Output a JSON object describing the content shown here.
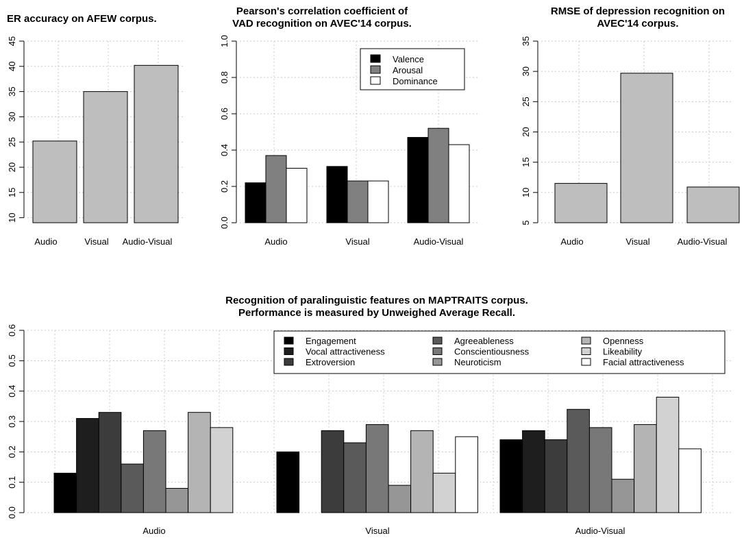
{
  "chart_data": [
    {
      "type": "bar",
      "title_lines": [
        "ER accuracy on AFEW corpus."
      ],
      "categories": [
        "Audio",
        "Visual",
        "Audio-Visual"
      ],
      "values": [
        25.2,
        35.0,
        40.2
      ],
      "ylim": [
        9,
        45
      ],
      "yticks": [
        10,
        15,
        20,
        25,
        30,
        35,
        40,
        45
      ],
      "grid": true,
      "colors": [
        "#bebebe"
      ]
    },
    {
      "type": "bar",
      "title_lines": [
        "Pearson's correlation coefficient of",
        "VAD recognition on AVEC'14 corpus."
      ],
      "categories": [
        "Audio",
        "Visual",
        "Audio-Visual"
      ],
      "series": [
        {
          "name": "Valence",
          "values": [
            0.22,
            0.31,
            0.47
          ]
        },
        {
          "name": "Arousal",
          "values": [
            0.37,
            0.23,
            0.52
          ]
        },
        {
          "name": "Dominance",
          "values": [
            0.3,
            0.23,
            0.43
          ]
        }
      ],
      "ylim": [
        0,
        1.0
      ],
      "yticks": [
        0.0,
        0.2,
        0.4,
        0.6,
        0.8,
        1.0
      ],
      "tick_decimals": 1,
      "legend": "top-right",
      "grid": true,
      "colors": [
        "#000000",
        "#808080",
        "#ffffff"
      ]
    },
    {
      "type": "bar",
      "title_lines": [
        "RMSE of depression recognition on",
        "AVEC'14 corpus."
      ],
      "categories": [
        "Audio",
        "Visual",
        "Audio-Visual"
      ],
      "values": [
        11.5,
        29.7,
        10.9
      ],
      "ylim": [
        5,
        35
      ],
      "yticks": [
        5,
        10,
        15,
        20,
        25,
        30,
        35
      ],
      "grid": true,
      "colors": [
        "#bebebe"
      ]
    },
    {
      "type": "bar",
      "title_lines": [
        "Recognition of paralinguistic features on MAPTRAITS corpus.",
        "Performance is measured by Unweighed Average Recall."
      ],
      "categories": [
        "Audio",
        "Visual",
        "Audio-Visual"
      ],
      "series": [
        {
          "name": "Engagement",
          "values": [
            0.13,
            0.2,
            0.24
          ]
        },
        {
          "name": "Vocal attractiveness",
          "values": [
            0.31,
            0.0,
            0.27
          ]
        },
        {
          "name": "Extroversion",
          "values": [
            0.33,
            0.27,
            0.24
          ]
        },
        {
          "name": "Agreeableness",
          "values": [
            0.16,
            0.23,
            0.34
          ]
        },
        {
          "name": "Conscientiousness",
          "values": [
            0.27,
            0.29,
            0.28
          ]
        },
        {
          "name": "Neuroticism",
          "values": [
            0.08,
            0.09,
            0.11
          ]
        },
        {
          "name": "Openness",
          "values": [
            0.33,
            0.27,
            0.29
          ]
        },
        {
          "name": "Likeability",
          "values": [
            0.28,
            0.13,
            0.38
          ]
        },
        {
          "name": "Facial attractiveness",
          "values": [
            null,
            0.25,
            0.21
          ]
        }
      ],
      "ylim": [
        0,
        0.6
      ],
      "yticks": [
        0.0,
        0.1,
        0.2,
        0.3,
        0.4,
        0.5,
        0.6
      ],
      "tick_decimals": 1,
      "legend": "top-right",
      "legend_columns": 3,
      "grid": true,
      "colors": [
        "#000000",
        "#1e1e1e",
        "#3c3c3c",
        "#5a5a5a",
        "#787878",
        "#969696",
        "#b4b4b4",
        "#d2d2d2",
        "#ffffff"
      ]
    }
  ]
}
